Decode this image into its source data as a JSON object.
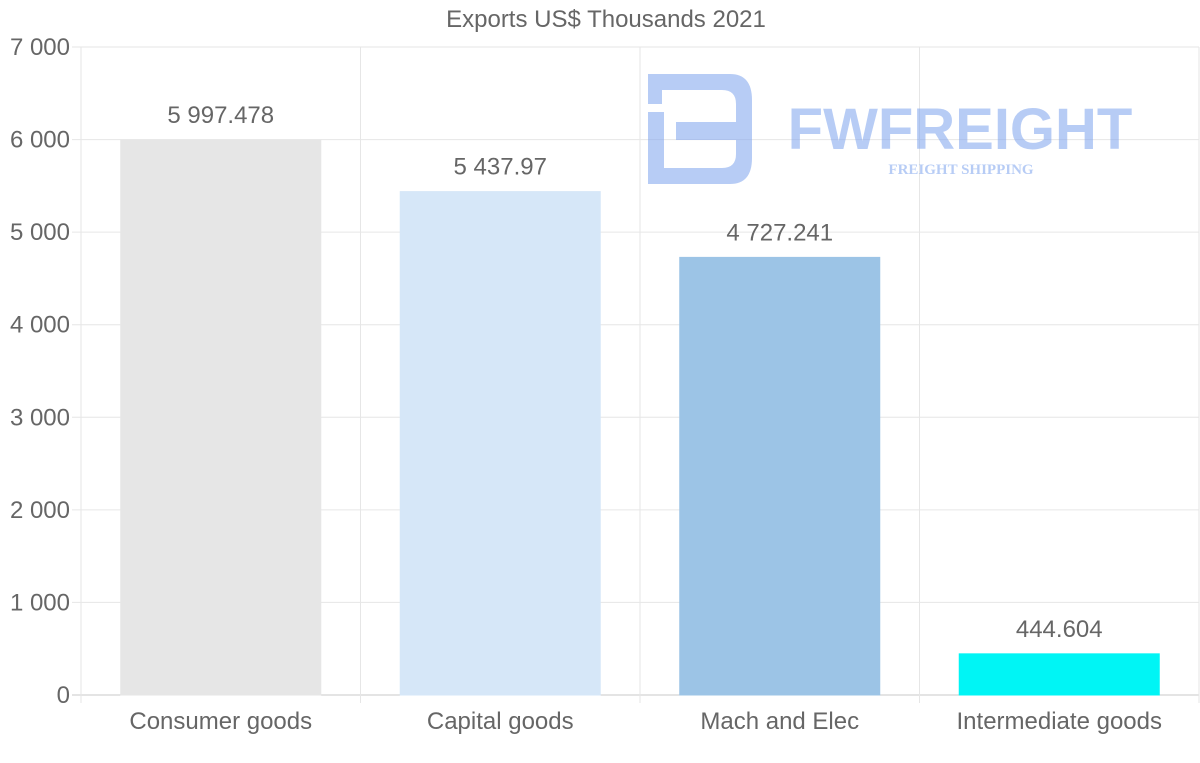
{
  "chart_data": {
    "type": "bar",
    "title": "Exports US$ Thousands 2021",
    "categories": [
      "Consumer goods",
      "Capital goods",
      "Mach and Elec",
      "Intermediate goods"
    ],
    "values": [
      5997.478,
      5437.97,
      4727.241,
      444.604
    ],
    "value_labels": [
      "5 997.478",
      "5 437.97",
      "4 727.241",
      "444.604"
    ],
    "bar_colors": [
      "#e6e6e6",
      "#d6e7f8",
      "#9cc4e6",
      "#00f5f5"
    ],
    "y_ticks": [
      0,
      1000,
      2000,
      3000,
      4000,
      5000,
      6000,
      7000
    ],
    "y_tick_labels": [
      "0",
      "1 000",
      "2 000",
      "3 000",
      "4 000",
      "5 000",
      "6 000",
      "7 000"
    ],
    "ylim": [
      0,
      7000
    ],
    "xlabel": "",
    "ylabel": "",
    "grid": true,
    "legend": "none"
  },
  "watermark": {
    "brand": "FWFREIGHT",
    "tagline": "FREIGHT SHIPPING",
    "color": "#7ea4ee"
  }
}
